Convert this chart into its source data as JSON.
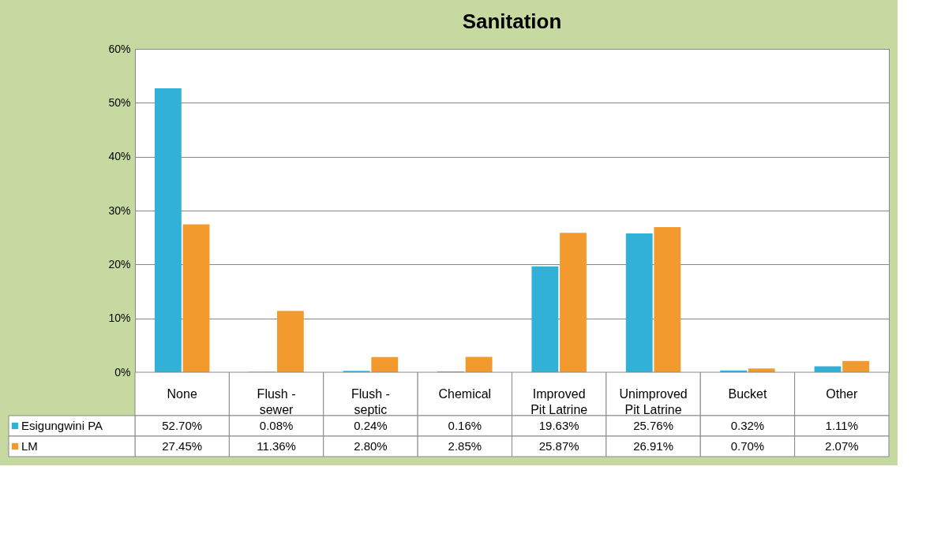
{
  "chart_data": {
    "type": "bar",
    "title": "Sanitation",
    "categories": [
      "None",
      "Flush - sewer",
      "Flush - septic",
      "Chemical",
      "Improved Pit Latrine",
      "Unimproved Pit Latrine",
      "Bucket",
      "Other"
    ],
    "series": [
      {
        "name": "Esigungwini PA",
        "color": "#31b0d8",
        "values": [
          52.7,
          0.08,
          0.24,
          0.16,
          19.63,
          25.76,
          0.32,
          1.11
        ],
        "value_labels": [
          "52.70%",
          "0.08%",
          "0.24%",
          "0.16%",
          "19.63%",
          "25.76%",
          "0.32%",
          "1.11%"
        ]
      },
      {
        "name": "LM",
        "color": "#f39a2e",
        "values": [
          27.45,
          11.36,
          2.8,
          2.85,
          25.87,
          26.91,
          0.7,
          2.07
        ],
        "value_labels": [
          "27.45%",
          "11.36%",
          "2.80%",
          "2.85%",
          "25.87%",
          "26.91%",
          "0.70%",
          "2.07%"
        ]
      }
    ],
    "ylim": [
      0,
      60
    ],
    "yticks": [
      {
        "value": 0,
        "label": "0%"
      },
      {
        "value": 10,
        "label": "10%"
      },
      {
        "value": 20,
        "label": "20%"
      },
      {
        "value": 30,
        "label": "30%"
      },
      {
        "value": 40,
        "label": "40%"
      },
      {
        "value": 50,
        "label": "50%"
      },
      {
        "value": 60,
        "label": "60%"
      }
    ],
    "grid": "y",
    "legend": "bottom"
  }
}
